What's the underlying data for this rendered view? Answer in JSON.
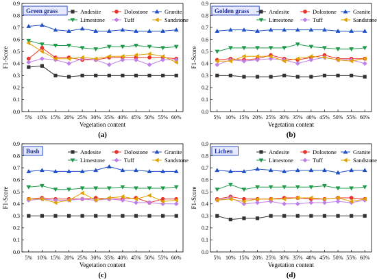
{
  "colors": {
    "Andesite": "#333333",
    "Dolostone": "#e8322a",
    "Granite": "#1f4fc4",
    "Limestone": "#1f9a4a",
    "Tuff": "#c07fe8",
    "Sandstone": "#e0a000",
    "title_box_border": "#1f3fbf",
    "title_box_fill": "#e6e9ff",
    "title_text": "#1a2f9a"
  },
  "markers": {
    "Andesite": "square",
    "Dolostone": "circle",
    "Granite": "triangle-up",
    "Limestone": "triangle-down",
    "Tuff": "diamond",
    "Sandstone": "triangle-left"
  },
  "chart_data": [
    {
      "type": "line",
      "title": "Green grass",
      "panel_label": "(a)",
      "xlabel": "Vegetation content",
      "ylabel": "F1-Score",
      "categories": [
        "5%",
        "10%",
        "15%",
        "20%",
        "25%",
        "30%",
        "35%",
        "40%",
        "45%",
        "50%",
        "55%",
        "60%"
      ],
      "ylim": [
        0.0,
        0.9
      ],
      "yticks": [
        "0.0",
        "0.1",
        "0.2",
        "0.3",
        "0.4",
        "0.5",
        "0.6",
        "0.7",
        "0.8",
        "0.9"
      ],
      "legend_position": "top-right",
      "series": [
        {
          "name": "Andesite",
          "values": [
            0.37,
            0.38,
            0.3,
            0.29,
            0.3,
            0.3,
            0.3,
            0.3,
            0.3,
            0.3,
            0.3,
            0.3
          ]
        },
        {
          "name": "Dolostone",
          "values": [
            0.44,
            0.53,
            0.45,
            0.45,
            0.43,
            0.43,
            0.45,
            0.45,
            0.45,
            0.45,
            0.45,
            0.44
          ]
        },
        {
          "name": "Granite",
          "values": [
            0.71,
            0.72,
            0.68,
            0.67,
            0.69,
            0.67,
            0.67,
            0.68,
            0.67,
            0.67,
            0.67,
            0.68
          ]
        },
        {
          "name": "Limestone",
          "values": [
            0.59,
            0.56,
            0.55,
            0.55,
            0.53,
            0.52,
            0.54,
            0.54,
            0.55,
            0.54,
            0.53,
            0.54
          ]
        },
        {
          "name": "Tuff",
          "values": [
            0.41,
            0.44,
            0.43,
            0.4,
            0.44,
            0.43,
            0.39,
            0.43,
            0.43,
            0.39,
            0.43,
            0.43
          ]
        },
        {
          "name": "Sandstone",
          "values": [
            0.57,
            0.5,
            0.44,
            0.44,
            0.45,
            0.44,
            0.46,
            0.46,
            0.47,
            0.48,
            0.46,
            0.41
          ]
        }
      ]
    },
    {
      "type": "line",
      "title": "Golden grass",
      "panel_label": "(b)",
      "xlabel": "Vegetation content",
      "ylabel": "F1-Score",
      "categories": [
        "5%",
        "10%",
        "15%",
        "20%",
        "25%",
        "30%",
        "35%",
        "40%",
        "45%",
        "50%",
        "55%",
        "60%"
      ],
      "ylim": [
        0.0,
        0.9
      ],
      "yticks": [
        "0.0",
        "0.1",
        "0.2",
        "0.3",
        "0.4",
        "0.5",
        "0.6",
        "0.7",
        "0.8",
        "0.9"
      ],
      "legend_position": "top-right",
      "series": [
        {
          "name": "Andesite",
          "values": [
            0.3,
            0.3,
            0.29,
            0.29,
            0.29,
            0.3,
            0.29,
            0.29,
            0.3,
            0.3,
            0.3,
            0.29
          ]
        },
        {
          "name": "Dolostone",
          "values": [
            0.43,
            0.44,
            0.43,
            0.44,
            0.47,
            0.44,
            0.43,
            0.45,
            0.47,
            0.44,
            0.44,
            0.44
          ]
        },
        {
          "name": "Granite",
          "values": [
            0.67,
            0.68,
            0.68,
            0.67,
            0.68,
            0.68,
            0.68,
            0.68,
            0.68,
            0.67,
            0.67,
            0.67
          ]
        },
        {
          "name": "Limestone",
          "values": [
            0.5,
            0.53,
            0.53,
            0.53,
            0.53,
            0.53,
            0.56,
            0.54,
            0.53,
            0.52,
            0.52,
            0.53
          ]
        },
        {
          "name": "Tuff",
          "values": [
            0.39,
            0.43,
            0.42,
            0.43,
            0.44,
            0.43,
            0.4,
            0.43,
            0.45,
            0.43,
            0.43,
            0.4
          ]
        },
        {
          "name": "Sandstone",
          "values": [
            0.42,
            0.42,
            0.46,
            0.46,
            0.46,
            0.42,
            0.44,
            0.46,
            0.45,
            0.43,
            0.42,
            0.44
          ]
        }
      ]
    },
    {
      "type": "line",
      "title": "Bush",
      "panel_label": "(c)",
      "xlabel": "Vegetation content",
      "ylabel": "F1-Score",
      "categories": [
        "5%",
        "10%",
        "15%",
        "20%",
        "25%",
        "30%",
        "35%",
        "40%",
        "45%",
        "50%",
        "55%",
        "60%"
      ],
      "ylim": [
        0.0,
        0.9
      ],
      "yticks": [
        "0.0",
        "0.1",
        "0.2",
        "0.3",
        "0.4",
        "0.5",
        "0.6",
        "0.7",
        "0.8",
        "0.9"
      ],
      "legend_position": "top-right",
      "series": [
        {
          "name": "Andesite",
          "values": [
            0.3,
            0.3,
            0.3,
            0.3,
            0.3,
            0.3,
            0.3,
            0.3,
            0.3,
            0.3,
            0.3,
            0.3
          ]
        },
        {
          "name": "Dolostone",
          "values": [
            0.44,
            0.45,
            0.44,
            0.44,
            0.44,
            0.45,
            0.44,
            0.44,
            0.45,
            0.41,
            0.44,
            0.44
          ]
        },
        {
          "name": "Granite",
          "values": [
            0.67,
            0.68,
            0.67,
            0.67,
            0.67,
            0.68,
            0.71,
            0.68,
            0.68,
            0.67,
            0.67,
            0.67
          ]
        },
        {
          "name": "Limestone",
          "values": [
            0.54,
            0.55,
            0.52,
            0.52,
            0.53,
            0.53,
            0.53,
            0.54,
            0.53,
            0.53,
            0.53,
            0.54
          ]
        },
        {
          "name": "Tuff",
          "values": [
            0.43,
            0.44,
            0.43,
            0.43,
            0.44,
            0.43,
            0.44,
            0.43,
            0.41,
            0.41,
            0.4,
            0.4
          ]
        },
        {
          "name": "Sandstone",
          "values": [
            0.44,
            0.44,
            0.41,
            0.43,
            0.49,
            0.43,
            0.45,
            0.46,
            0.44,
            0.47,
            0.42,
            0.43
          ]
        }
      ]
    },
    {
      "type": "line",
      "title": "Lichen",
      "panel_label": "(d)",
      "xlabel": "Vegetation content",
      "ylabel": "F1-Score",
      "categories": [
        "5%",
        "10%",
        "15%",
        "20%",
        "25%",
        "30%",
        "35%",
        "40%",
        "45%",
        "50%",
        "55%",
        "60%"
      ],
      "ylim": [
        0.0,
        0.9
      ],
      "yticks": [
        "0.0",
        "0.1",
        "0.2",
        "0.3",
        "0.4",
        "0.5",
        "0.6",
        "0.7",
        "0.8",
        "0.9"
      ],
      "legend_position": "top-right",
      "series": [
        {
          "name": "Andesite",
          "values": [
            0.3,
            0.27,
            0.28,
            0.28,
            0.3,
            0.3,
            0.3,
            0.3,
            0.3,
            0.3,
            0.3,
            0.3
          ]
        },
        {
          "name": "Dolostone",
          "values": [
            0.44,
            0.46,
            0.44,
            0.44,
            0.44,
            0.45,
            0.45,
            0.44,
            0.44,
            0.45,
            0.45,
            0.44
          ]
        },
        {
          "name": "Granite",
          "values": [
            0.68,
            0.67,
            0.67,
            0.69,
            0.68,
            0.67,
            0.68,
            0.68,
            0.68,
            0.66,
            0.68,
            0.68
          ]
        },
        {
          "name": "Limestone",
          "values": [
            0.52,
            0.56,
            0.52,
            0.54,
            0.54,
            0.54,
            0.54,
            0.54,
            0.55,
            0.53,
            0.53,
            0.54
          ]
        },
        {
          "name": "Tuff",
          "values": [
            0.43,
            0.45,
            0.4,
            0.41,
            0.42,
            0.4,
            0.4,
            0.41,
            0.41,
            0.42,
            0.41,
            0.43
          ]
        },
        {
          "name": "Sandstone",
          "values": [
            0.43,
            0.44,
            0.42,
            0.44,
            0.44,
            0.44,
            0.45,
            0.45,
            0.44,
            0.45,
            0.42,
            0.44
          ]
        }
      ]
    }
  ]
}
